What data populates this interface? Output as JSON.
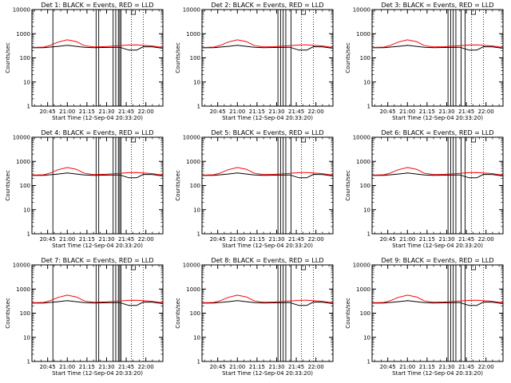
{
  "chart_data": {
    "type": "line",
    "y_scale": "log",
    "ylim": [
      1,
      10000
    ],
    "ylabel": "Counts/sec",
    "xlabel": "Start Time (12-Sep-04 20:33:20)",
    "y_tick_labels": [
      "1",
      "10",
      "100",
      "1000",
      "10000"
    ],
    "x_ticks_time": [
      "20:45",
      "21:00",
      "21:15",
      "21:30",
      "21:45",
      "22:00"
    ],
    "x_range_time": [
      "20:33",
      "22:13"
    ],
    "legend": "BLACK = Events, RED = LLD",
    "panels": [
      {
        "title": "Det 1: BLACK = Events, RED = LLD",
        "tick_labels": [
          "20:45",
          "21:00",
          "21:15",
          "21:30",
          "21:45",
          "22:00"
        ],
        "gaps": [
          "20:49",
          "21:22",
          "21:24",
          "21:35",
          "21:37",
          "21:39",
          "21:40",
          "21:41"
        ],
        "dotted": [
          "21:49",
          "21:58"
        ]
      },
      {
        "title": "Det 2: BLACK = Events, RED = LLD",
        "tick_labels": [
          "20:45",
          "21:00",
          "21:15",
          "21:30",
          "21:45",
          "22:00"
        ],
        "gaps": [
          "21:31",
          "21:33",
          "21:35",
          "21:37",
          "21:41"
        ],
        "dotted": [
          "21:49",
          "21:58"
        ]
      },
      {
        "title": "Det 3: BLACK = Events, RED = LLD",
        "tick_labels": [
          "20:45",
          "21:00",
          "21:15",
          "21:30",
          "21:45",
          "22:00"
        ],
        "gaps": [
          "21:31",
          "21:33",
          "21:35",
          "21:37",
          "21:41",
          "21:44"
        ],
        "dotted": [
          "21:49",
          "21:58"
        ]
      },
      {
        "title": "Det 4: BLACK = Events, RED = LLD",
        "tick_labels": [
          "20:45",
          "21:00",
          "21:15",
          "21:30",
          "21:45",
          "22:00"
        ],
        "gaps": [
          "20:49",
          "21:22",
          "21:24",
          "21:35",
          "21:37",
          "21:39",
          "21:40",
          "21:41"
        ],
        "dotted": [
          "21:49",
          "21:58"
        ]
      },
      {
        "title": "Det 5: BLACK = Events, RED = LLD",
        "tick_labels": [
          "20:45",
          "21:00",
          "21:15",
          "21:30",
          "21:45",
          "22:00"
        ],
        "gaps": [
          "21:31",
          "21:33",
          "21:35",
          "21:37",
          "21:41"
        ],
        "dotted": [
          "21:49",
          "21:58"
        ]
      },
      {
        "title": "Det 6: BLACK = Events, RED = LLD",
        "tick_labels": [
          "20:45",
          "21:00",
          "21:15",
          "21:30",
          "21:45",
          "22:00"
        ],
        "gaps": [
          "21:31",
          "21:33",
          "21:35",
          "21:37",
          "21:41",
          "21:44"
        ],
        "dotted": [
          "21:49",
          "21:58"
        ]
      },
      {
        "title": "Det 7: BLACK = Events, RED = LLD",
        "tick_labels": [
          "20:45",
          "21:00",
          "21:15",
          "21:30",
          "21:45",
          "22:00"
        ],
        "gaps": [
          "20:49",
          "21:22",
          "21:24",
          "21:35",
          "21:37",
          "21:39",
          "21:40",
          "21:41"
        ],
        "dotted": [
          "21:49",
          "21:58"
        ]
      },
      {
        "title": "Det 8: BLACK = Events, RED = LLD",
        "tick_labels": [
          "20:45",
          "21:00",
          "21:15",
          "21:30",
          "21:45",
          "22:00"
        ],
        "gaps": [
          "21:31",
          "21:33",
          "21:35",
          "21:37",
          "21:41"
        ],
        "dotted": [
          "21:49",
          "21:58"
        ]
      },
      {
        "title": "Det 9: BLACK = Events, RED = LLD",
        "tick_labels": [
          "20:45",
          "21:00",
          "21:15",
          "21:30",
          "21:45",
          "22:00"
        ],
        "gaps": [
          "21:31",
          "21:33",
          "21:35",
          "21:37",
          "21:41",
          "21:44"
        ],
        "dotted": [
          "21:49",
          "21:58"
        ]
      }
    ],
    "series": [
      {
        "name": "Events",
        "color": "#000000",
        "x": [
          "20:33",
          "20:42",
          "20:47",
          "20:53",
          "21:00",
          "21:07",
          "21:13",
          "21:20",
          "21:28",
          "21:40",
          "21:47",
          "21:53",
          "21:58",
          "22:05",
          "22:13"
        ],
        "y": [
          260,
          265,
          280,
          300,
          330,
          300,
          275,
          265,
          270,
          275,
          210,
          210,
          290,
          285,
          250
        ]
      },
      {
        "name": "LLD",
        "color": "#ff0000",
        "x": [
          "20:33",
          "20:42",
          "20:47",
          "20:53",
          "21:00",
          "21:07",
          "21:13",
          "21:20",
          "21:28",
          "21:40",
          "21:47",
          "21:53",
          "21:58",
          "22:05",
          "22:13"
        ],
        "y": [
          270,
          280,
          330,
          450,
          560,
          470,
          320,
          285,
          290,
          320,
          340,
          345,
          330,
          310,
          270
        ]
      }
    ]
  }
}
